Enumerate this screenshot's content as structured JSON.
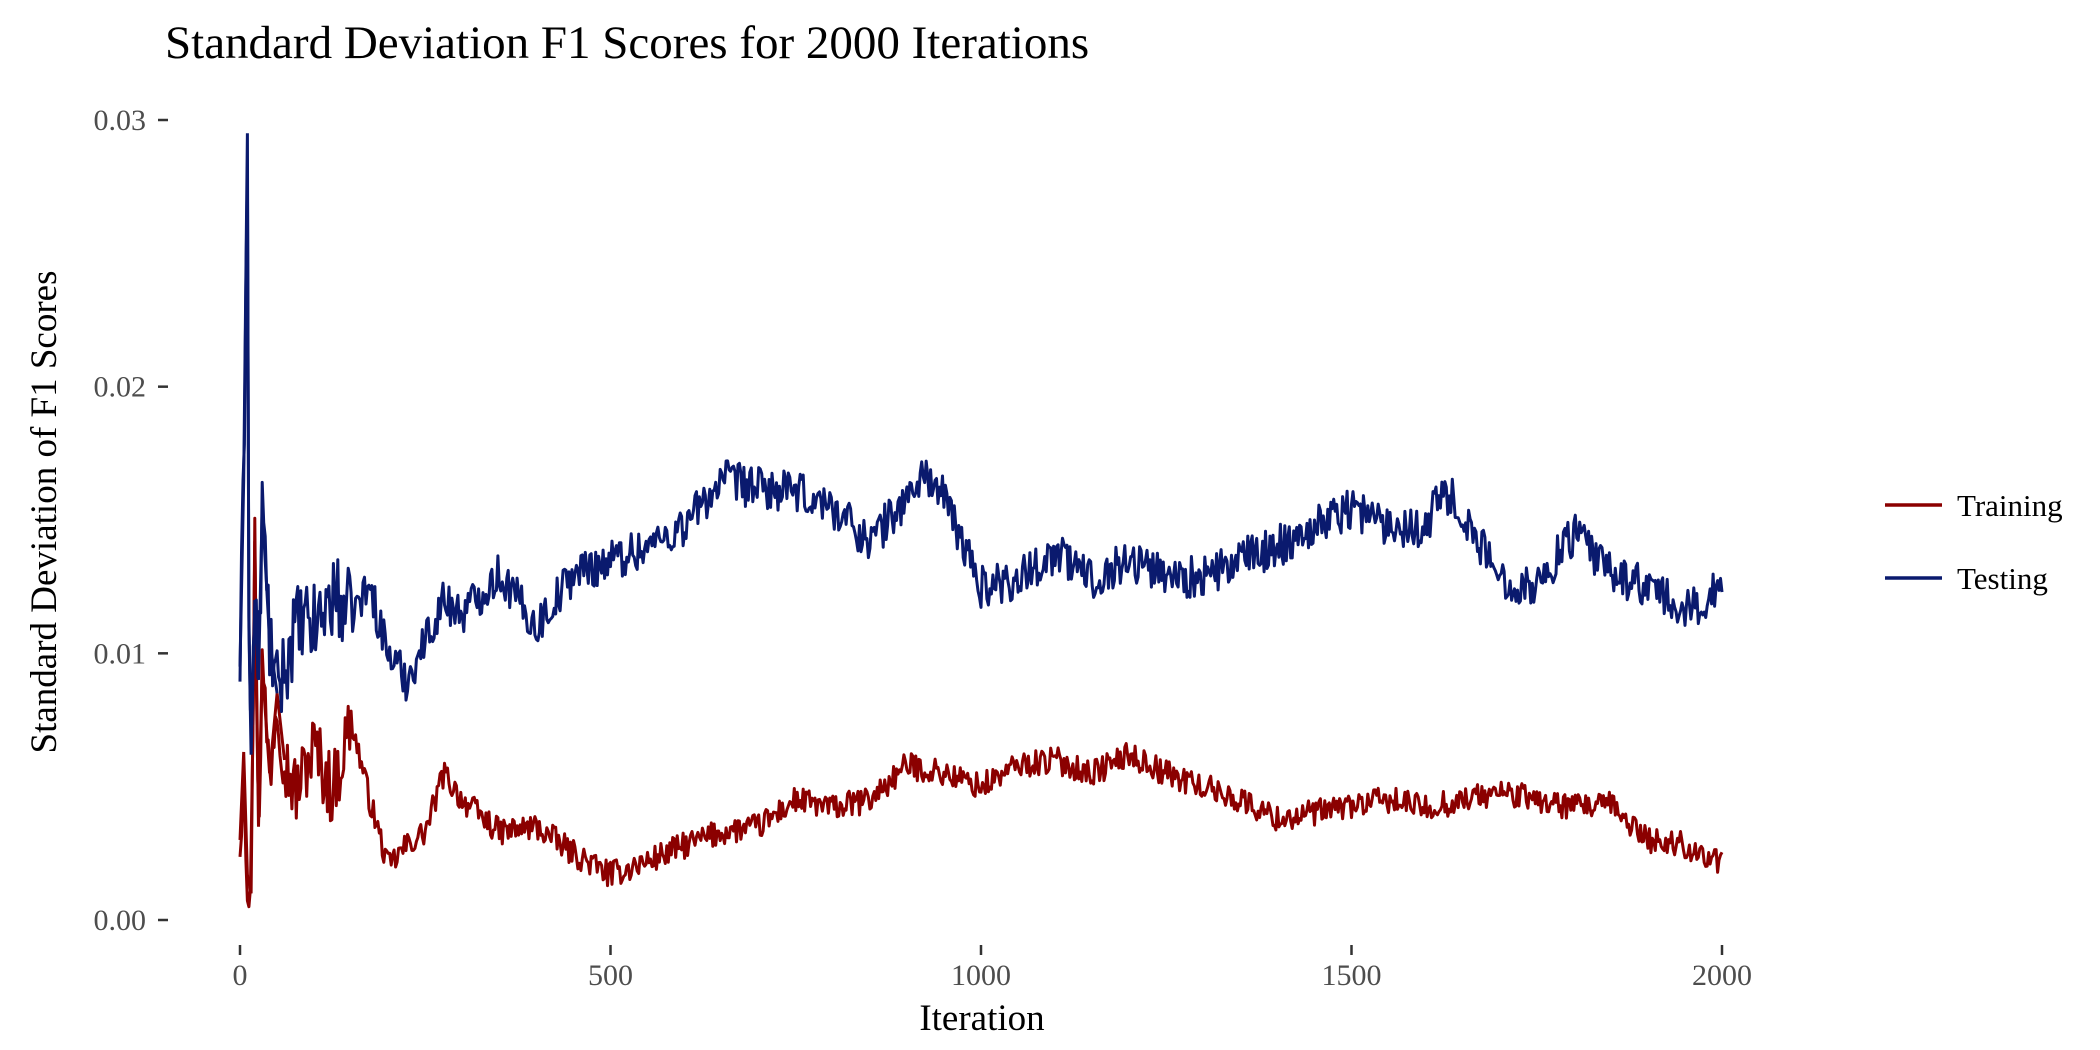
{
  "chart_data": {
    "type": "line",
    "title": "Standard Deviation F1 Scores for 2000 Iterations",
    "xlabel": "Iteration",
    "ylabel": "Standard Deviation of F1 Scores",
    "xlim": [
      0,
      2000
    ],
    "ylim": [
      0,
      0.03
    ],
    "x_ticks": [
      0,
      500,
      1000,
      1500,
      2000
    ],
    "x_tick_labels": [
      "0",
      "500",
      "1000",
      "1500",
      "2000"
    ],
    "y_ticks": [
      0,
      0.01,
      0.02,
      0.03
    ],
    "y_tick_labels": [
      "0.00",
      "0.01",
      "0.02",
      "0.03"
    ],
    "grid": false,
    "legend_position": "right",
    "series": [
      {
        "name": "Training",
        "color": "#8b0000",
        "x": [
          0,
          5,
          10,
          15,
          20,
          25,
          30,
          40,
          50,
          60,
          75,
          100,
          125,
          150,
          175,
          200,
          225,
          250,
          275,
          300,
          350,
          400,
          450,
          500,
          550,
          600,
          650,
          700,
          750,
          800,
          850,
          900,
          950,
          1000,
          1050,
          1100,
          1150,
          1200,
          1250,
          1300,
          1350,
          1400,
          1450,
          1500,
          1550,
          1600,
          1650,
          1700,
          1750,
          1800,
          1850,
          1900,
          1950,
          2000
        ],
        "y": [
          0.003,
          0.0063,
          0.0017,
          0.001,
          0.0142,
          0.0035,
          0.0095,
          0.0055,
          0.0085,
          0.006,
          0.0048,
          0.0065,
          0.0048,
          0.0075,
          0.0045,
          0.002,
          0.0028,
          0.0033,
          0.0055,
          0.0045,
          0.0033,
          0.0035,
          0.0025,
          0.0017,
          0.0022,
          0.0028,
          0.0033,
          0.0035,
          0.0045,
          0.0042,
          0.0045,
          0.0058,
          0.0055,
          0.005,
          0.0058,
          0.006,
          0.0055,
          0.0062,
          0.0055,
          0.005,
          0.0045,
          0.0038,
          0.004,
          0.0043,
          0.0045,
          0.0042,
          0.0045,
          0.0048,
          0.0045,
          0.0042,
          0.0043,
          0.003,
          0.0028,
          0.0021
        ]
      },
      {
        "name": "Testing",
        "color": "#0a1a6e",
        "x": [
          0,
          5,
          10,
          12,
          15,
          20,
          25,
          30,
          40,
          50,
          75,
          100,
          125,
          150,
          175,
          200,
          225,
          250,
          275,
          300,
          350,
          400,
          425,
          450,
          500,
          550,
          600,
          650,
          700,
          750,
          800,
          850,
          900,
          925,
          950,
          1000,
          1050,
          1100,
          1150,
          1200,
          1250,
          1300,
          1350,
          1400,
          1450,
          1500,
          1550,
          1600,
          1625,
          1650,
          1700,
          1750,
          1800,
          1850,
          1900,
          1950,
          2000
        ],
        "y": [
          0.0095,
          0.0165,
          0.0295,
          0.011,
          0.0062,
          0.012,
          0.009,
          0.0155,
          0.0105,
          0.0085,
          0.011,
          0.011,
          0.0122,
          0.0115,
          0.0125,
          0.01,
          0.009,
          0.0105,
          0.012,
          0.0115,
          0.013,
          0.011,
          0.012,
          0.013,
          0.0135,
          0.014,
          0.0148,
          0.0165,
          0.0162,
          0.016,
          0.0155,
          0.0142,
          0.0158,
          0.0168,
          0.0158,
          0.0125,
          0.0128,
          0.0138,
          0.0128,
          0.0135,
          0.013,
          0.0128,
          0.0135,
          0.014,
          0.0148,
          0.0155,
          0.0148,
          0.0148,
          0.0162,
          0.0152,
          0.0128,
          0.0125,
          0.0145,
          0.013,
          0.0125,
          0.0115,
          0.0125
        ]
      }
    ]
  }
}
